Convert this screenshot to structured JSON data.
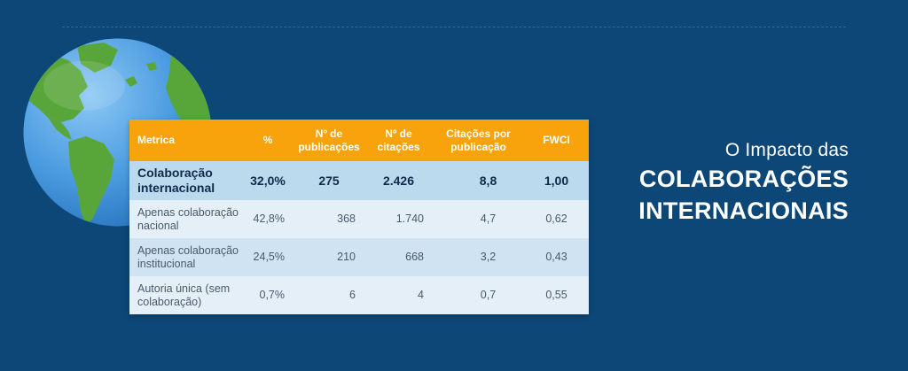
{
  "table": {
    "headers": [
      "Metrica",
      "%",
      "Nº de publicações",
      "Nº de citações",
      "Citações por publicação",
      "FWCI"
    ],
    "rows": [
      {
        "label": "Colaboração internacional",
        "pct": "32,0%",
        "pubs": "275",
        "cits": "2.426",
        "cpp": "8,8",
        "fwci": "1,00"
      },
      {
        "label": "Apenas colaboração nacional",
        "pct": "42,8%",
        "pubs": "368",
        "cits": "1.740",
        "cpp": "4,7",
        "fwci": "0,62"
      },
      {
        "label": "Apenas colaboração institucional",
        "pct": "24,5%",
        "pubs": "210",
        "cits": "668",
        "cpp": "3,2",
        "fwci": "0,43"
      },
      {
        "label": "Autoria única (sem colaboração)",
        "pct": "0,7%",
        "pubs": "6",
        "cits": "4",
        "cpp": "0,7",
        "fwci": "0,55"
      }
    ]
  },
  "title": {
    "line1": "O Impacto das",
    "line2": "COLABORAÇÕES",
    "line3": "INTERNACIONAIS"
  },
  "icons": {
    "globe": "globe-icon"
  },
  "colors": {
    "background": "#0d4777",
    "header": "#f8a30c",
    "highlight_row": "#bcdaee",
    "light_row": "#e4eff7",
    "mid_row": "#cfe3f2",
    "ocean": "#4fa0e2",
    "land": "#58a63a"
  }
}
